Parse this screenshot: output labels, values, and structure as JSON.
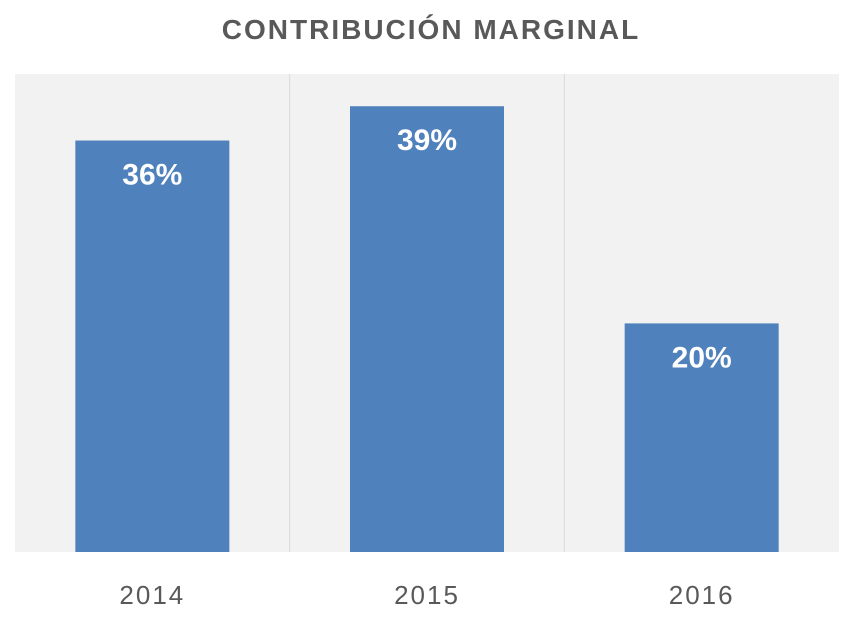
{
  "chart_data": {
    "type": "bar",
    "title": "CONTRIBUCIÓN MARGINAL",
    "xlabel": "",
    "ylabel": "",
    "categories": [
      "2014",
      "2015",
      "2016"
    ],
    "values": [
      36,
      39,
      20
    ],
    "data_labels": [
      "36%",
      "39%",
      "20%"
    ],
    "ylim": [
      0,
      45
    ],
    "grid": "vertical-separators",
    "legend": "none",
    "colors": {
      "bar": "#4F81BD",
      "plot_background": "#F2F2F2",
      "separator": "#D9D9D9",
      "text": "#595959"
    }
  }
}
